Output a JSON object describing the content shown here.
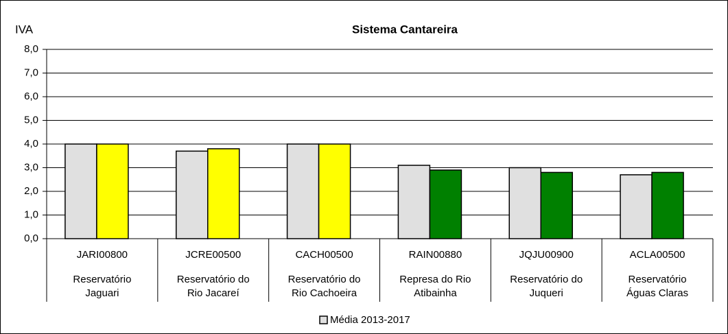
{
  "chart_data": {
    "type": "bar",
    "title": "Sistema Cantareira",
    "y_label": "IVA",
    "categories": [
      "JARI00800",
      "JCRE00500",
      "CACH00500",
      "RAIN00880",
      "JQJU00900",
      "ACLA00500"
    ],
    "locations": [
      [
        "Reservatório",
        "Jaguari"
      ],
      [
        "Reservatório do",
        "Rio Jacareí"
      ],
      [
        "Reservatório do",
        "Rio Cachoeira"
      ],
      [
        "Represa do Rio",
        "Atibainha"
      ],
      [
        "Reservatório do",
        "Juqueri"
      ],
      [
        "Reservatório",
        "Águas Claras"
      ]
    ],
    "series": [
      {
        "name": "Média 2013-2017",
        "color": "#e0e0e0",
        "values": [
          4.0,
          3.7,
          4.0,
          3.1,
          3.0,
          2.7
        ]
      },
      {
        "colors": [
          "#ffff00",
          "#ffff00",
          "#ffff00",
          "#008000",
          "#008000",
          "#008000"
        ],
        "values": [
          4.0,
          3.8,
          4.0,
          2.9,
          2.8,
          2.8
        ]
      }
    ],
    "ylim": [
      0,
      8
    ],
    "yticks": [
      {
        "value": 0,
        "label": "0,0"
      },
      {
        "value": 1,
        "label": "1,0"
      },
      {
        "value": 2,
        "label": "2,0"
      },
      {
        "value": 3,
        "label": "3,0"
      },
      {
        "value": 4,
        "label": "4,0"
      },
      {
        "value": 5,
        "label": "5,0"
      },
      {
        "value": 6,
        "label": "6,0"
      },
      {
        "value": 7,
        "label": "7,0"
      },
      {
        "value": 8,
        "label": "8,0"
      }
    ],
    "grid": true,
    "legend": "bottom"
  }
}
